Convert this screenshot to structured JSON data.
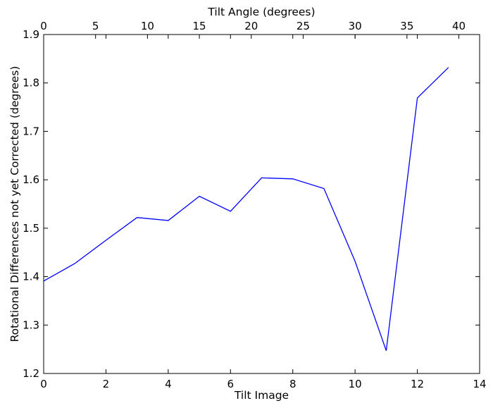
{
  "chart_data": {
    "type": "line",
    "xlabel": "Tilt Image",
    "ylabel": "Rotational Differences not yet Corrected (degrees)",
    "x2label": "Tilt Angle (degrees)",
    "xlim": [
      0,
      14
    ],
    "ylim": [
      1.2,
      1.9
    ],
    "x2lim": [
      0,
      42
    ],
    "xticks": [
      0,
      2,
      4,
      6,
      8,
      10,
      12,
      14
    ],
    "yticks": [
      1.2,
      1.3,
      1.4,
      1.5,
      1.6,
      1.7,
      1.8,
      1.9
    ],
    "x2ticks": [
      0,
      5,
      10,
      15,
      20,
      25,
      30,
      35,
      40
    ],
    "grid": false,
    "series": [
      {
        "color": "#0000ff",
        "x": [
          0,
          1,
          2,
          3,
          4,
          5,
          6,
          7,
          8,
          9,
          10,
          11,
          12,
          13
        ],
        "y": [
          1.391,
          1.427,
          1.475,
          1.522,
          1.516,
          1.566,
          1.535,
          1.604,
          1.602,
          1.582,
          1.432,
          1.247,
          1.769,
          1.832
        ]
      }
    ]
  }
}
